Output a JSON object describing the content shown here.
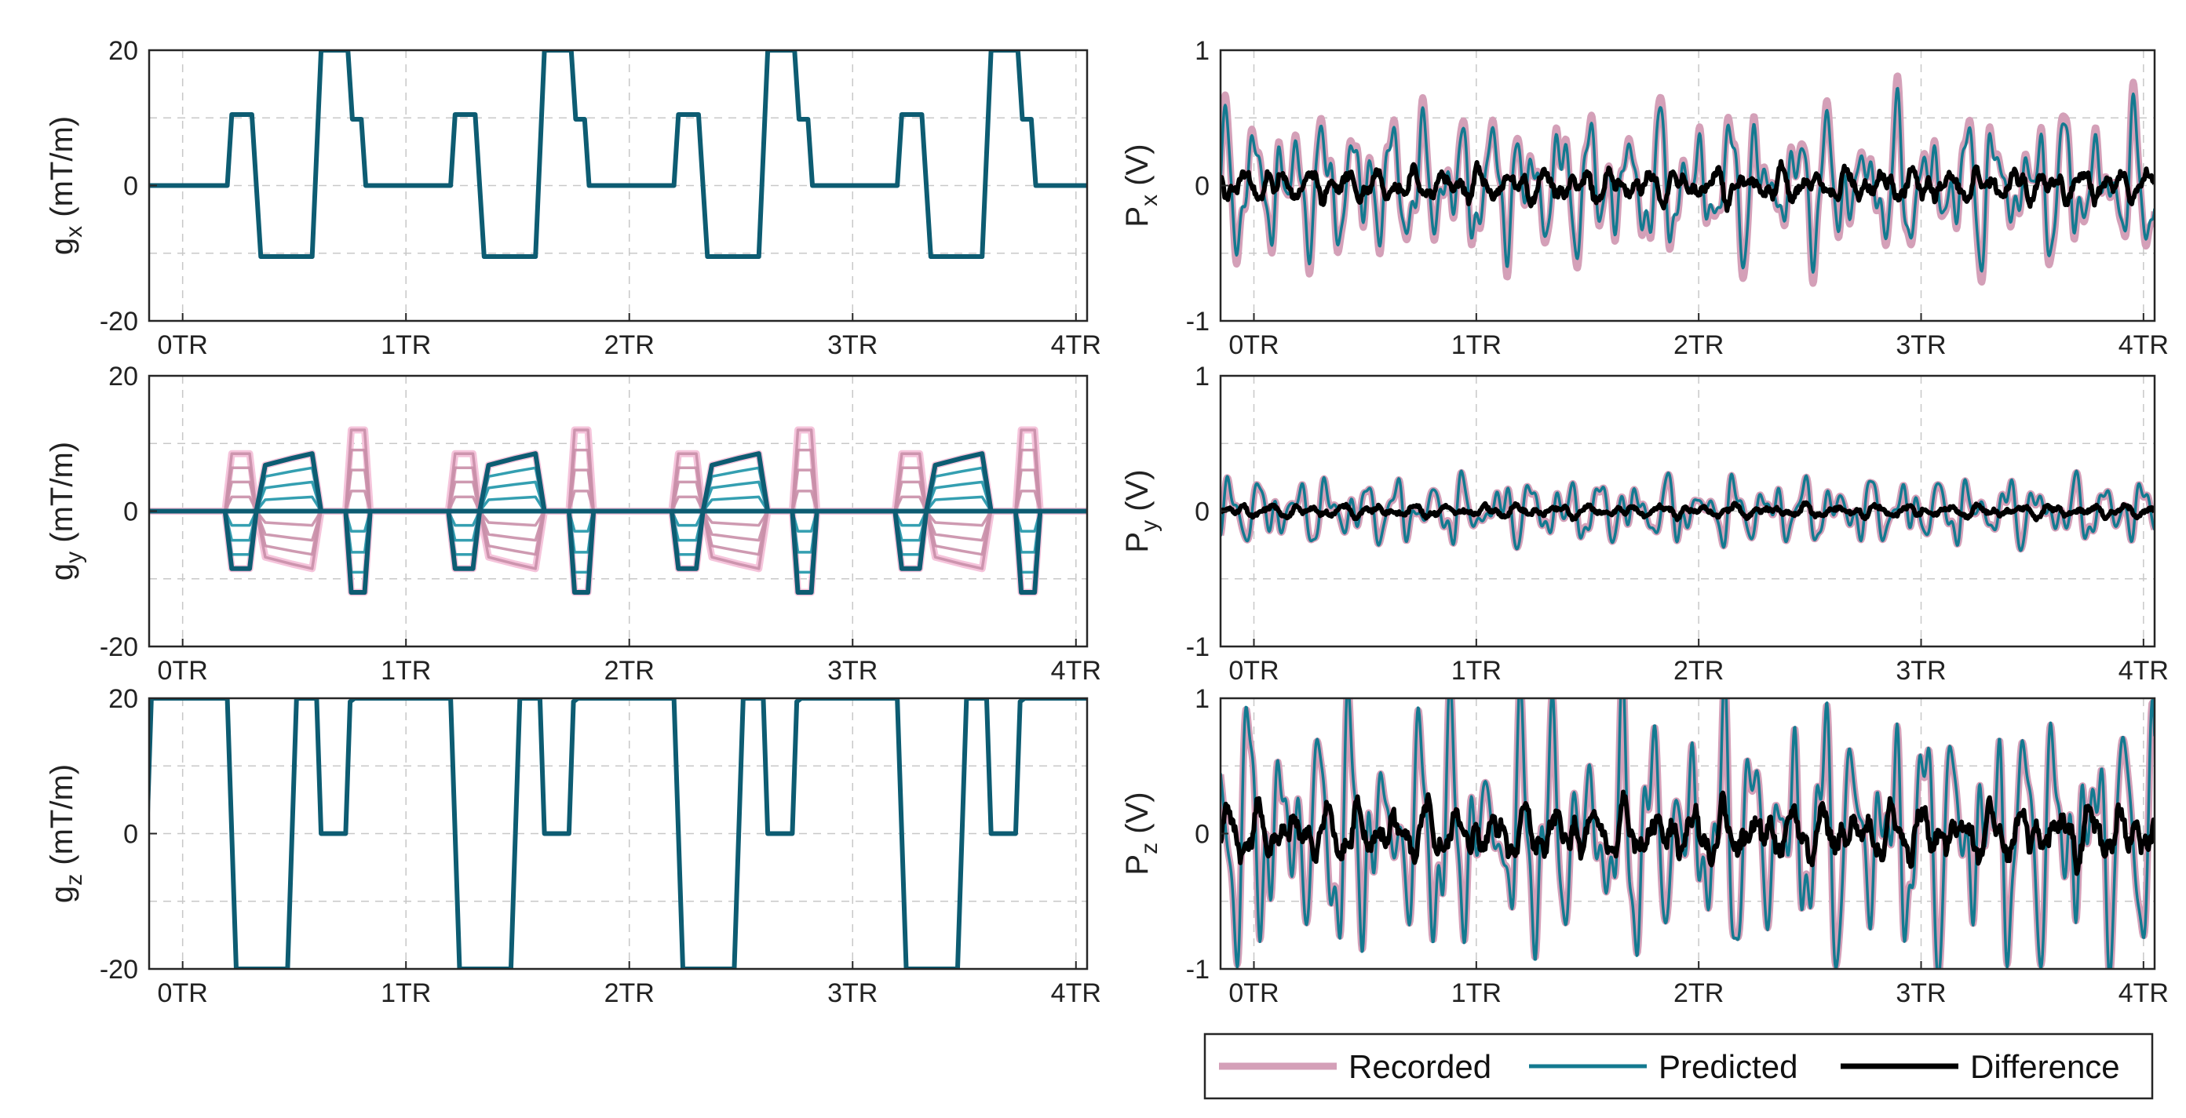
{
  "figure": {
    "colors": {
      "recorded": "#D4A0B8",
      "predicted": "#137A90",
      "difference": "#000000",
      "gradient_main": "#0D5C72",
      "gradient_variant_pos": "#1E95A8",
      "gradient_variant_neg": "#C98FA8",
      "gradient_variant_outline": "#F5C4DB",
      "axis": "#262626",
      "grid": "#C8C8C8"
    },
    "legend": {
      "entries": [
        {
          "key": "recorded",
          "label": "Recorded"
        },
        {
          "key": "predicted",
          "label": "Predicted"
        },
        {
          "key": "difference",
          "label": "Difference"
        }
      ],
      "placement": "below-right-column"
    }
  },
  "chart_data": [
    {
      "id": "gx",
      "type": "line",
      "column": "left",
      "row": 0,
      "ylabel_main": "g",
      "ylabel_sub": "x",
      "ylabel_tail": " (mT/m)",
      "xlim": [
        -0.15,
        4.05
      ],
      "ylim": [
        -20,
        20
      ],
      "xticks": [
        0,
        1,
        2,
        3,
        4
      ],
      "xtick_labels": [
        "0TR",
        "1TR",
        "2TR",
        "3TR",
        "4TR"
      ],
      "yticks": [
        -20,
        0,
        20
      ],
      "ytick_labels": [
        "-20",
        "0",
        "20"
      ],
      "grid": true,
      "period": 1,
      "periods": 5,
      "series": [
        {
          "name": "g_x",
          "color_key": "gradient_main",
          "x": [
            0,
            0.2,
            0.22,
            0.31,
            0.35,
            0.58,
            0.62,
            0.74,
            0.76,
            0.8,
            0.82
          ],
          "y": [
            0,
            0,
            10.5,
            10.5,
            -10.5,
            -10.5,
            20,
            20,
            9.8,
            9.8,
            0
          ]
        }
      ]
    },
    {
      "id": "gy",
      "type": "line",
      "column": "left",
      "row": 1,
      "ylabel_main": "g",
      "ylabel_sub": "y",
      "ylabel_tail": " (mT/m)",
      "xlim": [
        -0.15,
        4.05
      ],
      "ylim": [
        -20,
        20
      ],
      "xticks": [
        0,
        1,
        2,
        3,
        4
      ],
      "xtick_labels": [
        "0TR",
        "1TR",
        "2TR",
        "3TR",
        "4TR"
      ],
      "yticks": [
        -20,
        0,
        20
      ],
      "ytick_labels": [
        "-20",
        "0",
        "20"
      ],
      "grid": true,
      "period": 1,
      "periods": 5,
      "phase_encode_steps": [
        8.5,
        6.4,
        4.3,
        2.1,
        0,
        -2.1,
        -4.3,
        -6.4,
        -8.5
      ],
      "series": [
        {
          "name": "g_y",
          "color_key": "gradient_main",
          "prephaser": {
            "start": 0.19,
            "end": 0.33,
            "ramp": 0.03,
            "amplitude": -8.5
          },
          "phase_encode": {
            "start": 0.33,
            "end": 0.62,
            "ramp": 0.04,
            "amplitude": 8.5
          },
          "rewinder": {
            "start": 0.73,
            "end": 0.84,
            "ramp": 0.025,
            "amplitude": -12
          }
        }
      ]
    },
    {
      "id": "gz",
      "type": "line",
      "column": "left",
      "row": 2,
      "ylabel_main": "g",
      "ylabel_sub": "z",
      "ylabel_tail": " (mT/m)",
      "xlim": [
        -0.15,
        4.05
      ],
      "ylim": [
        -20,
        20
      ],
      "xticks": [
        0,
        1,
        2,
        3,
        4
      ],
      "xtick_labels": [
        "0TR",
        "1TR",
        "2TR",
        "3TR",
        "4TR"
      ],
      "yticks": [
        -20,
        0,
        20
      ],
      "ytick_labels": [
        "-20",
        "0",
        "20"
      ],
      "grid": true,
      "period": 1,
      "periods": 5,
      "series": [
        {
          "name": "g_z",
          "color_key": "gradient_main",
          "start": [
            [
              -0.16,
              0
            ],
            [
              -0.14,
              20
            ]
          ],
          "x": [
            0,
            0.2,
            0.24,
            0.47,
            0.51,
            0.6,
            0.62,
            0.73,
            0.75,
            0.77
          ],
          "y": [
            20,
            20,
            -20,
            -20,
            20,
            20,
            0,
            0,
            19.5,
            20
          ]
        }
      ]
    },
    {
      "id": "px",
      "type": "line",
      "column": "right",
      "row": 0,
      "ylabel_main": "P",
      "ylabel_sub": "x",
      "ylabel_tail": " (V)",
      "xlim": [
        -0.15,
        4.05
      ],
      "ylim": [
        -1,
        1
      ],
      "xticks": [
        0,
        1,
        2,
        3,
        4
      ],
      "xtick_labels": [
        "0TR",
        "1TR",
        "2TR",
        "3TR",
        "4TR"
      ],
      "yticks": [
        -1,
        0,
        1
      ],
      "ytick_labels": [
        "-1",
        "0",
        "1"
      ],
      "grid": true,
      "series": [
        {
          "name": "Recorded",
          "color_key": "recorded",
          "amplitude": 0.62,
          "seed": 11
        },
        {
          "name": "Predicted",
          "color_key": "predicted",
          "amplitude": 0.55,
          "seed": 11
        },
        {
          "name": "Difference",
          "color_key": "difference",
          "amplitude": 0.13,
          "seed": 23
        }
      ]
    },
    {
      "id": "py",
      "type": "line",
      "column": "right",
      "row": 1,
      "ylabel_main": "P",
      "ylabel_sub": "y",
      "ylabel_tail": " (V)",
      "xlim": [
        -0.15,
        4.05
      ],
      "ylim": [
        -1,
        1
      ],
      "xticks": [
        0,
        1,
        2,
        3,
        4
      ],
      "xtick_labels": [
        "0TR",
        "1TR",
        "2TR",
        "3TR",
        "4TR"
      ],
      "yticks": [
        -1,
        0,
        1
      ],
      "ytick_labels": [
        "-1",
        "0",
        "1"
      ],
      "grid": true,
      "series": [
        {
          "name": "Recorded",
          "color_key": "recorded",
          "amplitude": 0.26,
          "seed": 5
        },
        {
          "name": "Predicted",
          "color_key": "predicted",
          "amplitude": 0.27,
          "seed": 5
        },
        {
          "name": "Difference",
          "color_key": "difference",
          "amplitude": 0.05,
          "seed": 31
        }
      ]
    },
    {
      "id": "pz",
      "type": "line",
      "column": "right",
      "row": 2,
      "ylabel_main": "P",
      "ylabel_sub": "z",
      "ylabel_tail": " (V)",
      "xlim": [
        -0.15,
        4.05
      ],
      "ylim": [
        -1,
        1
      ],
      "xticks": [
        0,
        1,
        2,
        3,
        4
      ],
      "xtick_labels": [
        "0TR",
        "1TR",
        "2TR",
        "3TR",
        "4TR"
      ],
      "yticks": [
        -1,
        0,
        1
      ],
      "ytick_labels": [
        "-1",
        "0",
        "1"
      ],
      "grid": true,
      "series": [
        {
          "name": "Recorded",
          "color_key": "recorded",
          "amplitude": 0.98,
          "seed": 17
        },
        {
          "name": "Predicted",
          "color_key": "predicted",
          "amplitude": 1.0,
          "seed": 17
        },
        {
          "name": "Difference",
          "color_key": "difference",
          "amplitude": 0.22,
          "seed": 41
        }
      ]
    }
  ]
}
